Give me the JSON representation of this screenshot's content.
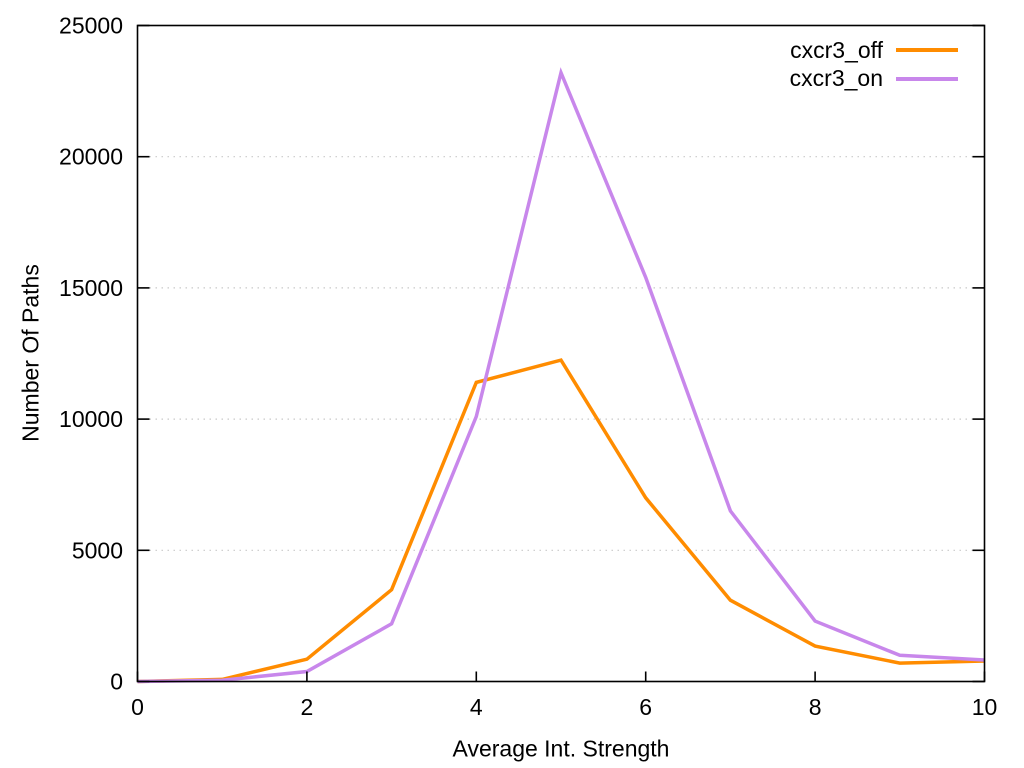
{
  "chart_data": {
    "type": "line",
    "title": "",
    "xlabel": "Average Int. Strength",
    "ylabel": "Number Of Paths",
    "x": [
      0,
      1,
      2,
      3,
      4,
      5,
      6,
      7,
      8,
      9,
      10
    ],
    "series": [
      {
        "name": "cxcr3_off",
        "color": "#ff8c00",
        "values": [
          0,
          80,
          850,
          3500,
          11400,
          12250,
          7000,
          3100,
          1350,
          700,
          780
        ]
      },
      {
        "name": "cxcr3_on",
        "color": "#c887eb",
        "values": [
          0,
          50,
          380,
          2200,
          10100,
          23200,
          15400,
          6500,
          2300,
          1000,
          820
        ]
      }
    ],
    "xlim": [
      0,
      10
    ],
    "ylim": [
      0,
      25000
    ],
    "xticks": [
      0,
      2,
      4,
      6,
      8,
      10
    ],
    "xtick_labels": [
      "0",
      "2",
      "4",
      "6",
      "8",
      "10"
    ],
    "yticks": [
      0,
      5000,
      10000,
      15000,
      20000,
      25000
    ],
    "ytick_labels": [
      "0",
      "5000",
      "10000",
      "15000",
      "20000",
      "25000"
    ],
    "grid": "horizontal-dotted",
    "grid_color": "#c9c9c9",
    "axis_color": "#000000",
    "background": "#ffffff",
    "legend_position": "top-right-inside"
  }
}
